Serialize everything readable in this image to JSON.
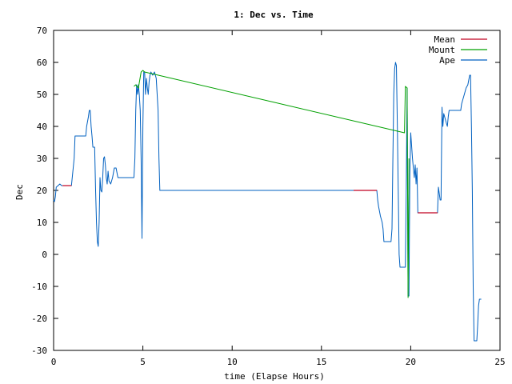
{
  "chart_data": {
    "type": "line",
    "title": "1: Dec vs. Time",
    "xlabel": "time (Elapse Hours)",
    "ylabel": "Dec",
    "xlim": [
      0,
      25
    ],
    "ylim": [
      -30,
      70
    ],
    "xticks": [
      0,
      5,
      10,
      15,
      20,
      25
    ],
    "yticks": [
      -30,
      -20,
      -10,
      0,
      10,
      20,
      30,
      40,
      50,
      60,
      70
    ],
    "grid": false,
    "legend_position": "top-right",
    "series": [
      {
        "name": "Mean",
        "color": "#c00020",
        "segments": [
          [
            [
              0.5,
              21.5
            ],
            [
              1.0,
              21.5
            ]
          ],
          [
            [
              16.8,
              20.0
            ],
            [
              18.1,
              20.0
            ]
          ],
          [
            [
              20.4,
              13.0
            ],
            [
              21.5,
              13.0
            ]
          ]
        ]
      },
      {
        "name": "Mount",
        "color": "#00a000",
        "points": [
          [
            4.5,
            52.5
          ],
          [
            4.6,
            53
          ],
          [
            4.75,
            52
          ],
          [
            4.9,
            57
          ],
          [
            5.0,
            57.5
          ],
          [
            5.1,
            57
          ],
          [
            19.65,
            38
          ],
          [
            19.7,
            52.5
          ],
          [
            19.8,
            52
          ],
          [
            19.85,
            -13.5
          ],
          [
            19.9,
            30
          ]
        ]
      },
      {
        "name": "Ape",
        "color": "#0060c0",
        "points": [
          [
            0.0,
            17
          ],
          [
            0.05,
            16.5
          ],
          [
            0.1,
            18
          ],
          [
            0.15,
            21
          ],
          [
            0.25,
            21.5
          ],
          [
            0.35,
            22
          ],
          [
            0.45,
            21.5
          ],
          [
            1.0,
            21.5
          ],
          [
            1.15,
            30
          ],
          [
            1.2,
            37
          ],
          [
            1.8,
            37
          ],
          [
            1.85,
            40
          ],
          [
            1.95,
            43
          ],
          [
            2.0,
            45
          ],
          [
            2.05,
            45
          ],
          [
            2.1,
            40
          ],
          [
            2.15,
            37
          ],
          [
            2.2,
            33.5
          ],
          [
            2.3,
            33.5
          ],
          [
            2.35,
            20
          ],
          [
            2.4,
            10
          ],
          [
            2.45,
            4
          ],
          [
            2.5,
            2.5
          ],
          [
            2.55,
            10
          ],
          [
            2.6,
            24
          ],
          [
            2.65,
            20
          ],
          [
            2.7,
            19.5
          ],
          [
            2.75,
            24
          ],
          [
            2.8,
            30
          ],
          [
            2.85,
            30.5
          ],
          [
            2.9,
            28
          ],
          [
            2.95,
            24
          ],
          [
            3.0,
            22
          ],
          [
            3.05,
            26
          ],
          [
            3.1,
            23
          ],
          [
            3.2,
            22
          ],
          [
            3.3,
            24
          ],
          [
            3.4,
            27
          ],
          [
            3.5,
            27
          ],
          [
            3.6,
            24
          ],
          [
            4.5,
            24
          ],
          [
            4.55,
            30
          ],
          [
            4.6,
            45
          ],
          [
            4.65,
            53
          ],
          [
            4.7,
            50
          ],
          [
            4.75,
            53
          ],
          [
            4.8,
            50
          ],
          [
            4.85,
            45
          ],
          [
            4.9,
            30
          ],
          [
            4.95,
            5
          ],
          [
            5.0,
            40
          ],
          [
            5.05,
            57
          ],
          [
            5.1,
            57
          ],
          [
            5.15,
            50
          ],
          [
            5.2,
            55
          ],
          [
            5.25,
            52
          ],
          [
            5.3,
            50
          ],
          [
            5.35,
            54
          ],
          [
            5.4,
            56
          ],
          [
            5.45,
            57
          ],
          [
            5.55,
            56
          ],
          [
            5.65,
            57
          ],
          [
            5.75,
            55
          ],
          [
            5.85,
            45
          ],
          [
            5.9,
            30
          ],
          [
            5.95,
            20
          ],
          [
            18.1,
            20
          ],
          [
            18.15,
            17
          ],
          [
            18.2,
            15
          ],
          [
            18.3,
            12
          ],
          [
            18.4,
            10
          ],
          [
            18.45,
            8
          ],
          [
            18.5,
            4
          ],
          [
            18.9,
            4
          ],
          [
            18.95,
            8
          ],
          [
            19.0,
            30
          ],
          [
            19.05,
            50
          ],
          [
            19.1,
            58
          ],
          [
            19.15,
            60
          ],
          [
            19.2,
            59
          ],
          [
            19.25,
            40
          ],
          [
            19.3,
            20
          ],
          [
            19.35,
            0
          ],
          [
            19.4,
            -4
          ],
          [
            19.7,
            -4
          ],
          [
            19.75,
            20
          ],
          [
            19.8,
            52
          ],
          [
            19.85,
            -13
          ],
          [
            19.9,
            -13
          ],
          [
            19.95,
            25
          ],
          [
            20.0,
            38
          ],
          [
            20.05,
            34
          ],
          [
            20.1,
            30
          ],
          [
            20.15,
            27
          ],
          [
            20.2,
            24
          ],
          [
            20.25,
            28
          ],
          [
            20.3,
            22
          ],
          [
            20.35,
            27
          ],
          [
            20.4,
            13
          ],
          [
            21.5,
            13
          ],
          [
            21.55,
            21
          ],
          [
            21.6,
            19
          ],
          [
            21.65,
            17
          ],
          [
            21.7,
            17
          ],
          [
            21.75,
            46
          ],
          [
            21.8,
            40
          ],
          [
            21.85,
            44
          ],
          [
            21.9,
            43
          ],
          [
            22.0,
            41
          ],
          [
            22.05,
            40
          ],
          [
            22.1,
            43
          ],
          [
            22.15,
            45
          ],
          [
            22.8,
            45
          ],
          [
            22.85,
            47
          ],
          [
            22.9,
            48
          ],
          [
            23.0,
            50
          ],
          [
            23.1,
            52
          ],
          [
            23.2,
            53
          ],
          [
            23.3,
            56
          ],
          [
            23.35,
            56
          ],
          [
            23.4,
            40
          ],
          [
            23.45,
            20
          ],
          [
            23.5,
            -10
          ],
          [
            23.55,
            -27
          ],
          [
            23.7,
            -27
          ],
          [
            23.75,
            -22
          ],
          [
            23.8,
            -16
          ],
          [
            23.85,
            -14
          ],
          [
            23.95,
            -14
          ]
        ]
      }
    ]
  }
}
